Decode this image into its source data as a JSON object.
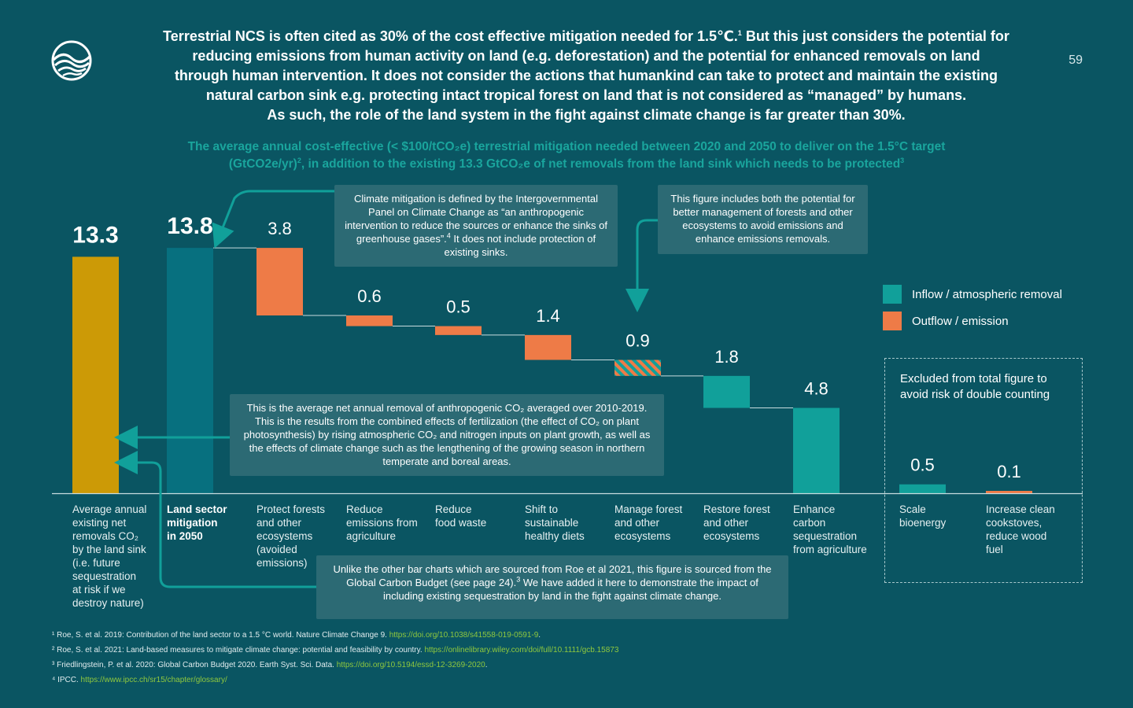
{
  "page_number": "59",
  "headline": {
    "line1": "Terrestrial NCS is often cited as 30% of the cost effective mitigation needed for 1.5℃.",
    "line1_sup": "1",
    "line1_rest": " But this just considers the potential for",
    "line2": "reducing emissions from human activity on land (e.g. deforestation) and the potential for enhanced removals on land",
    "line3": "through human intervention. It does not consider the actions that humankind can take to protect and maintain the existing",
    "line4": "natural carbon sink e.g. protecting intact tropical forest on land that is not considered as “managed” by humans.",
    "line5": "As such, the role of the land system in the fight against climate change is far greater than 30%."
  },
  "subtitle": {
    "line1": "The average annual cost-effective (< $100/tCO₂e) terrestrial mitigation needed between 2020 and 2050 to deliver on the 1.5°C target",
    "line2a": "(GtCO2e/yr)",
    "line2a_sup": "2",
    "line2b": ", in addition to the existing 13.3 GtCO₂e of net removals from the land sink which needs to be protected",
    "line2b_sup": "3"
  },
  "colors": {
    "background": "#0a5562",
    "existing_sink": "#cc9a06",
    "inflow": "#11a09a",
    "outflow": "#ee7b47",
    "callout": "#2c6a74",
    "subtitle": "#1aa59d",
    "link": "#8fc83e"
  },
  "chart_data": {
    "type": "bar",
    "subtype": "waterfall",
    "unit": "GtCO2e/yr",
    "categories": [
      "Average annual existing net removals CO₂ by the land sink (i.e. future sequestration at risk if we destroy nature)",
      "Land sector mitigation in 2050",
      "Protect forests and other ecosystems (avoided emissions)",
      "Reduce emissions from agriculture",
      "Reduce food waste",
      "Shift to sustainable healthy diets",
      "Manage forest and other ecosystems",
      "Restore forest and other ecosystems",
      "Enhance carbon sequestration from agriculture",
      "Scale bioenergy",
      "Increase clean cookstoves, reduce wood fuel"
    ],
    "bars": [
      {
        "category": "Average annual existing net removals CO₂ by the land sink (i.e. future sequestration at risk if we destroy nature)",
        "label": "13.3",
        "value": 13.3,
        "base": 0,
        "kind": "existing_sink"
      },
      {
        "category": "Land sector mitigation in 2050",
        "label": "13.8",
        "value": 13.8,
        "base": 0,
        "kind": "total"
      },
      {
        "category": "Protect forests and other ecosystems (avoided emissions)",
        "label": "3.8",
        "value": 3.8,
        "base": 10.0,
        "kind": "outflow"
      },
      {
        "category": "Reduce emissions from agriculture",
        "label": "0.6",
        "value": 0.6,
        "base": 9.4,
        "kind": "outflow"
      },
      {
        "category": "Reduce food waste",
        "label": "0.5",
        "value": 0.5,
        "base": 8.9,
        "kind": "outflow"
      },
      {
        "category": "Shift to sustainable healthy diets",
        "label": "1.4",
        "value": 1.4,
        "base": 7.5,
        "kind": "outflow"
      },
      {
        "category": "Manage forest and other ecosystems",
        "label": "0.9",
        "value": 0.9,
        "base": 6.6,
        "kind": "mixed"
      },
      {
        "category": "Restore forest and other ecosystems",
        "label": "1.8",
        "value": 1.8,
        "base": 4.8,
        "kind": "inflow"
      },
      {
        "category": "Enhance carbon sequestration from agriculture",
        "label": "4.8",
        "value": 4.8,
        "base": 0,
        "kind": "inflow"
      },
      {
        "category": "Scale bioenergy",
        "label": "0.5",
        "value": 0.5,
        "base": 0,
        "kind": "inflow",
        "excluded": true
      },
      {
        "category": "Increase clean cookstoves, reduce wood fuel",
        "label": "0.1",
        "value": 0.1,
        "base": 0,
        "kind": "outflow",
        "excluded": true
      }
    ],
    "ylim": [
      0,
      14
    ],
    "grid": false,
    "legend": {
      "placement": "right",
      "entries": [
        {
          "name": "Inflow / atmospheric removal",
          "color": "#11a09a"
        },
        {
          "name": "Outflow / emission",
          "color": "#ee7b47"
        }
      ]
    }
  },
  "categories_display": [
    {
      "lines": [
        "Average annual",
        "existing net",
        "removals CO₂",
        "by the land sink",
        "(i.e. future",
        "sequestration",
        "at risk if we",
        "destroy nature)"
      ],
      "bold": false
    },
    {
      "lines": [
        "Land sector",
        "mitigation",
        "in 2050"
      ],
      "bold": true
    },
    {
      "lines": [
        "Protect forests",
        "and other",
        "ecosystems",
        "(avoided",
        "emissions)"
      ],
      "bold": false
    },
    {
      "lines": [
        "Reduce",
        "emissions from",
        "agriculture"
      ],
      "bold": false
    },
    {
      "lines": [
        "Reduce",
        "food waste"
      ],
      "bold": false
    },
    {
      "lines": [
        "Shift to",
        "sustainable",
        "healthy diets"
      ],
      "bold": false
    },
    {
      "lines": [
        "Manage forest",
        "and other",
        "ecosystems"
      ],
      "bold": false
    },
    {
      "lines": [
        "Restore forest",
        "and other",
        "ecosystems"
      ],
      "bold": false
    },
    {
      "lines": [
        "Enhance",
        "carbon",
        "sequestration",
        "from agriculture"
      ],
      "bold": false
    },
    {
      "lines": [
        "Scale",
        "bioenergy"
      ],
      "bold": false
    },
    {
      "lines": [
        "Increase clean",
        "cookstoves,",
        "reduce wood",
        "fuel"
      ],
      "bold": false
    }
  ],
  "callouts": {
    "ipcc": {
      "text": "Climate mitigation is defined by the Intergovernmental Panel on Climate Change as “an anthropogenic intervention to reduce the sources or enhance the sinks of greenhouse gases”.",
      "sup": "4",
      "text_rest": " It does not include protection of existing sinks."
    },
    "figure": {
      "text": "This figure includes both the potential for better management of forests and other ecosystems to avoid emissions and enhance emissions removals."
    },
    "net_removal": {
      "text": "This is the average net annual removal of anthropogenic CO₂ averaged over 2010-2019. This is the results from the combined effects of fertilization (the effect of CO₂ on plant photosynthesis) by rising atmospheric CO₂ and nitrogen inputs on plant growth, as well as the effects of climate change such as the lengthening of the growing season in northern temperate and boreal areas."
    },
    "source": {
      "text": "Unlike the other bar charts which are sourced from Roe et al 2021, this figure is sourced from the Global Carbon Budget (see page 24).",
      "sup": "3",
      "text_rest": " We have added it here to demonstrate the impact of including existing sequestration by land in the fight against climate change."
    }
  },
  "excluded_note": "Excluded from total figure to avoid risk of double counting",
  "footnotes": [
    {
      "mark": "¹",
      "text": " Roe, S. et al. 2019: Contribution of the land sector to a 1.5 °C world. Nature Climate Change 9. ",
      "link": "https://doi.org/10.1038/s41558-019-0591-9",
      "tail": "."
    },
    {
      "mark": "²",
      "text": " Roe, S. et al. 2021: Land-based measures to mitigate climate change: potential and feasibility by country. ",
      "link": "https://onlinelibrary.wiley.com/doi/full/10.1111/gcb.15873",
      "tail": ""
    },
    {
      "mark": "³",
      "text": " Friedlingstein, P. et al. 2020: Global Carbon Budget 2020. Earth Syst. Sci. Data. ",
      "link": "https://doi.org/10.5194/essd-12-3269-2020",
      "tail": "."
    },
    {
      "mark": "⁴",
      "text": " IPCC. ",
      "link": "https://www.ipcc.ch/sr15/chapter/glossary/",
      "tail": ""
    }
  ]
}
